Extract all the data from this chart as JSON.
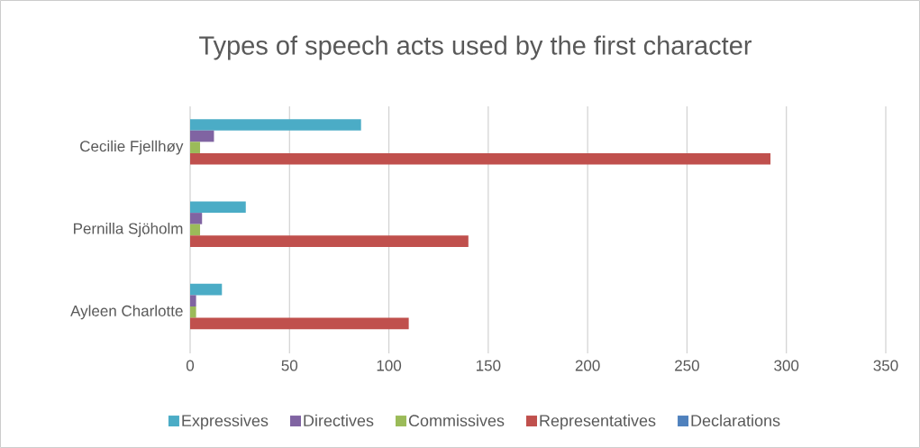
{
  "chart_data": {
    "type": "bar",
    "orientation": "horizontal",
    "title": "Types of speech acts used by the first character",
    "categories": [
      "Cecilie Fjellhøy",
      "Pernilla Sjöholm",
      "Ayleen Charlotte"
    ],
    "series": [
      {
        "name": "Expressives",
        "color": "#4bacc6",
        "values": [
          86,
          28,
          16
        ]
      },
      {
        "name": "Directives",
        "color": "#8064a2",
        "values": [
          12,
          6,
          3
        ]
      },
      {
        "name": "Commissives",
        "color": "#9bbb59",
        "values": [
          5,
          5,
          3
        ]
      },
      {
        "name": "Representatives",
        "color": "#c0504d",
        "values": [
          292,
          140,
          110
        ]
      },
      {
        "name": "Declarations",
        "color": "#4f81bd",
        "values": [
          0,
          0,
          0
        ]
      }
    ],
    "xlim": [
      0,
      350
    ],
    "xticks": [
      0,
      50,
      100,
      150,
      200,
      250,
      300,
      350
    ],
    "grid": "x",
    "legend": "bottom"
  }
}
